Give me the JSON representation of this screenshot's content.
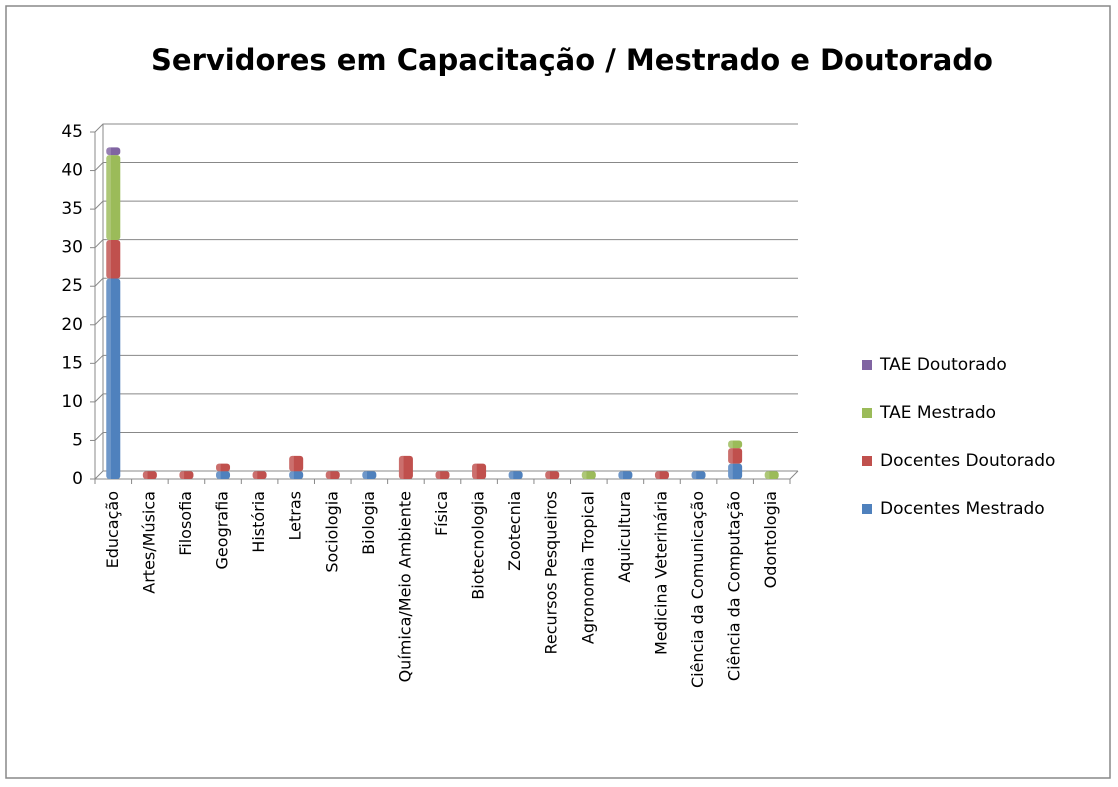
{
  "chart_data": {
    "type": "stacked-bar",
    "title": "Servidores em Capacitação / Mestrado e Doutorado",
    "categories": [
      "Educação",
      "Artes/Música",
      "Filosofia",
      "Geografia",
      "História",
      "Letras",
      "Sociologia",
      "Biologia",
      "Química/Meio Ambiente",
      "Física",
      "Biotecnologia",
      "Zootecnia",
      "Recursos Pesqueiros",
      "Agronomia Tropical",
      "Aquicultura",
      "Medicina Veterinária",
      "Ciência da Comunicação",
      "Ciência da Computação",
      "Odontologia"
    ],
    "series": [
      {
        "name": "Docentes Mestrado",
        "color": "#4f81bd",
        "values": [
          26,
          0,
          0,
          1,
          0,
          1,
          0,
          1,
          0,
          0,
          0,
          1,
          0,
          0,
          1,
          0,
          1,
          2,
          0
        ]
      },
      {
        "name": "Docentes Doutorado",
        "color": "#c0504d",
        "values": [
          5,
          1,
          1,
          1,
          1,
          2,
          1,
          0,
          3,
          1,
          2,
          0,
          1,
          0,
          0,
          1,
          0,
          2,
          0
        ]
      },
      {
        "name": "TAE Mestrado",
        "color": "#9bbb59",
        "values": [
          11,
          0,
          0,
          0,
          0,
          0,
          0,
          0,
          0,
          0,
          0,
          0,
          0,
          1,
          0,
          0,
          0,
          1,
          1
        ]
      },
      {
        "name": "TAE Doutorado",
        "color": "#8064a2",
        "values": [
          1,
          0,
          0,
          0,
          0,
          0,
          0,
          0,
          0,
          0,
          0,
          0,
          0,
          0,
          0,
          0,
          0,
          0,
          0
        ]
      }
    ],
    "ylim": [
      0,
      45
    ],
    "yticks": [
      0,
      5,
      10,
      15,
      20,
      25,
      30,
      35,
      40,
      45
    ],
    "grid": true,
    "legend": "right"
  }
}
